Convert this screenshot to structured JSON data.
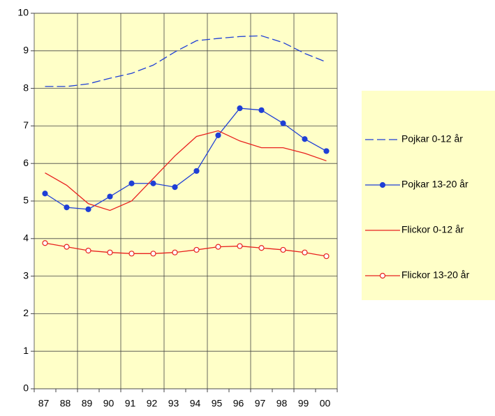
{
  "chart_data": {
    "type": "line",
    "categories": [
      "87",
      "88",
      "89",
      "90",
      "91",
      "92",
      "93",
      "94",
      "95",
      "96",
      "97",
      "98",
      "99",
      "00"
    ],
    "series": [
      {
        "name": "Pojkar 0-12 år",
        "color": "#1f3fd6",
        "dashed": true,
        "values": [
          8.05,
          8.05,
          8.12,
          8.27,
          8.4,
          8.62,
          8.97,
          9.27,
          9.33,
          9.38,
          9.4,
          9.22,
          8.93,
          8.7
        ]
      },
      {
        "name": "Pojkar 13-20 år",
        "color": "#1f3fd6",
        "marker": "filled-circle",
        "values": [
          5.2,
          4.83,
          4.78,
          5.12,
          5.47,
          5.47,
          5.37,
          5.8,
          6.75,
          7.47,
          7.42,
          7.07,
          6.65,
          6.33
        ]
      },
      {
        "name": "Flickor 0-12 år",
        "color": "#e8201e",
        "values": [
          5.75,
          5.42,
          4.93,
          4.75,
          5.0,
          5.6,
          6.2,
          6.72,
          6.87,
          6.6,
          6.42,
          6.42,
          6.27,
          6.07
        ]
      },
      {
        "name": "Flickor 13-20 år",
        "color": "#e8201e",
        "marker": "open-circle",
        "values": [
          3.88,
          3.78,
          3.68,
          3.63,
          3.6,
          3.6,
          3.63,
          3.7,
          3.78,
          3.8,
          3.75,
          3.7,
          3.63,
          3.53
        ]
      }
    ],
    "ylim": [
      0,
      10
    ],
    "yticks": [
      0,
      1,
      2,
      3,
      4,
      5,
      6,
      7,
      8,
      9,
      10
    ],
    "grid": true,
    "legend": "right",
    "background": "#ffffc8"
  }
}
